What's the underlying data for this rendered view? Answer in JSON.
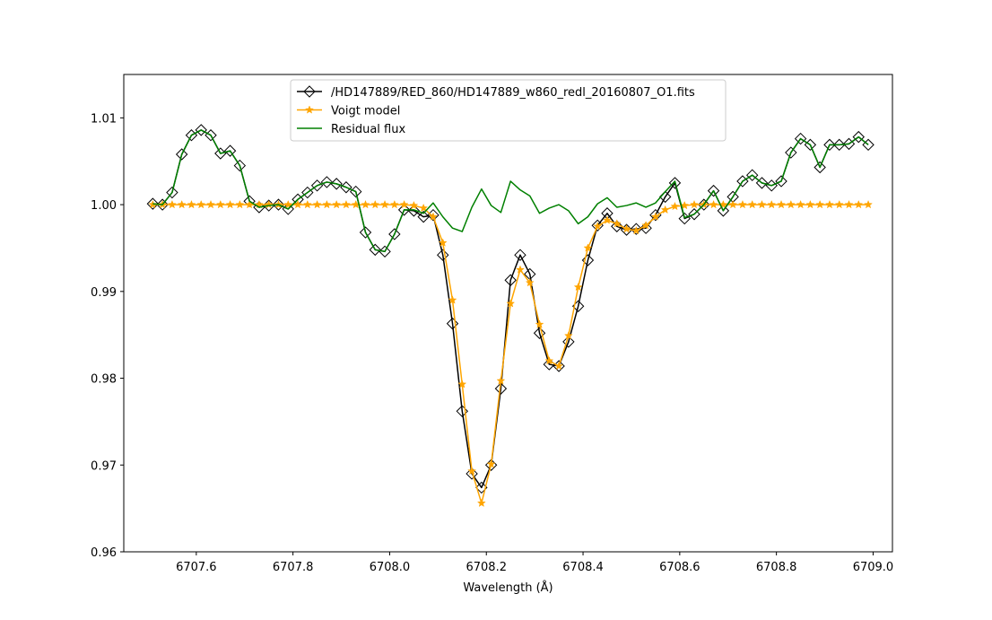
{
  "chart_data": {
    "type": "line",
    "title": "",
    "xlabel": "Wavelength (Å)",
    "ylabel": "",
    "xlim": [
      6707.45,
      6709.04
    ],
    "ylim": [
      0.96,
      1.015
    ],
    "x_ticks": [
      {
        "value": 6707.6,
        "label": "6707.6"
      },
      {
        "value": 6707.8,
        "label": "6707.8"
      },
      {
        "value": 6708.0,
        "label": "6708.0"
      },
      {
        "value": 6708.2,
        "label": "6708.2"
      },
      {
        "value": 6708.4,
        "label": "6708.4"
      },
      {
        "value": 6708.6,
        "label": "6708.6"
      },
      {
        "value": 6708.8,
        "label": "6708.8"
      },
      {
        "value": 6709.0,
        "label": "6709.0"
      }
    ],
    "y_ticks": [
      {
        "value": 0.96,
        "label": "0.96"
      },
      {
        "value": 0.97,
        "label": "0.97"
      },
      {
        "value": 0.98,
        "label": "0.98"
      },
      {
        "value": 0.99,
        "label": "0.99"
      },
      {
        "value": 1.0,
        "label": "1.00"
      },
      {
        "value": 1.01,
        "label": "1.01"
      }
    ],
    "grid": false,
    "legend_position": "top-center",
    "x": [
      6707.51,
      6707.53,
      6707.55,
      6707.57,
      6707.59,
      6707.61,
      6707.63,
      6707.65,
      6707.67,
      6707.69,
      6707.71,
      6707.73,
      6707.75,
      6707.77,
      6707.79,
      6707.81,
      6707.83,
      6707.85,
      6707.87,
      6707.89,
      6707.91,
      6707.93,
      6707.95,
      6707.97,
      6707.99,
      6708.01,
      6708.03,
      6708.05,
      6708.07,
      6708.09,
      6708.11,
      6708.13,
      6708.15,
      6708.17,
      6708.19,
      6708.21,
      6708.23,
      6708.25,
      6708.27,
      6708.29,
      6708.31,
      6708.33,
      6708.35,
      6708.37,
      6708.39,
      6708.41,
      6708.43,
      6708.45,
      6708.47,
      6708.49,
      6708.51,
      6708.53,
      6708.55,
      6708.57,
      6708.59,
      6708.61,
      6708.63,
      6708.65,
      6708.67,
      6708.69,
      6708.71,
      6708.73,
      6708.75,
      6708.77,
      6708.79,
      6708.81,
      6708.83,
      6708.85,
      6708.87,
      6708.89,
      6708.91,
      6708.93,
      6708.95,
      6708.97,
      6708.99
    ],
    "series": [
      {
        "name": "/HD147889/RED_860/HD147889_w860_redl_20160807_O1.fits",
        "color": "#000000",
        "marker": "diamond-open",
        "values": [
          1.0001,
          1.0,
          1.0014,
          1.0058,
          1.008,
          1.0086,
          1.008,
          1.0059,
          1.0062,
          1.0045,
          1.0004,
          0.9997,
          0.9999,
          1.0,
          0.9995,
          1.0006,
          1.0014,
          1.0022,
          1.0026,
          1.0024,
          1.002,
          1.0015,
          0.9968,
          0.9948,
          0.9946,
          0.9966,
          0.9994,
          0.9993,
          0.9986,
          0.9988,
          0.9942,
          0.9863,
          0.9762,
          0.969,
          0.9674,
          0.97,
          0.9788,
          0.9913,
          0.9942,
          0.992,
          0.9852,
          0.9816,
          0.9814,
          0.9842,
          0.9883,
          0.9936,
          0.9976,
          0.999,
          0.9975,
          0.9971,
          0.9972,
          0.9973,
          0.9988,
          1.0009,
          1.0025,
          0.9984,
          0.9989,
          1.0,
          1.0016,
          0.9993,
          1.0009,
          1.0027,
          1.0034,
          1.0025,
          1.0022,
          1.0027,
          1.006,
          1.0076,
          1.0069,
          1.0043,
          1.0069,
          1.0069,
          1.007,
          1.0078,
          1.0069
        ]
      },
      {
        "name": "Voigt model",
        "color": "#ffa500",
        "marker": "star",
        "values": [
          1.0,
          1.0,
          1.0,
          1.0,
          1.0,
          1.0,
          1.0,
          1.0,
          1.0,
          1.0,
          1.0,
          1.0,
          1.0,
          1.0,
          1.0,
          1.0,
          1.0,
          1.0,
          1.0,
          1.0,
          1.0,
          1.0,
          1.0,
          1.0,
          1.0,
          1.0,
          1.0,
          0.9999,
          0.9996,
          0.9986,
          0.9956,
          0.989,
          0.9793,
          0.9693,
          0.9656,
          0.9701,
          0.9797,
          0.9886,
          0.9925,
          0.991,
          0.9862,
          0.982,
          0.9814,
          0.9849,
          0.9905,
          0.995,
          0.9975,
          0.9982,
          0.9978,
          0.9972,
          0.997,
          0.9976,
          0.9986,
          0.9994,
          0.9998,
          0.9999,
          1.0,
          1.0,
          1.0,
          1.0,
          1.0,
          1.0,
          1.0,
          1.0,
          1.0,
          1.0,
          1.0,
          1.0,
          1.0,
          1.0,
          1.0,
          1.0,
          1.0,
          1.0,
          1.0
        ]
      },
      {
        "name": "Residual flux",
        "color": "#008000",
        "marker": "none",
        "values": [
          1.0001,
          1.0,
          1.0014,
          1.0058,
          1.008,
          1.0086,
          1.008,
          1.0059,
          1.0062,
          1.0045,
          1.0004,
          0.9997,
          0.9999,
          1.0,
          0.9995,
          1.0006,
          1.0014,
          1.0022,
          1.0026,
          1.0024,
          1.002,
          1.0015,
          0.9968,
          0.9948,
          0.9946,
          0.9966,
          0.9994,
          0.9994,
          0.999,
          1.0002,
          0.9986,
          0.9973,
          0.9969,
          0.9997,
          1.0018,
          0.9999,
          0.9991,
          1.0027,
          1.0017,
          1.001,
          0.999,
          0.9996,
          1.0,
          0.9993,
          0.9978,
          0.9986,
          1.0001,
          1.0008,
          0.9997,
          0.9999,
          1.0002,
          0.9997,
          1.0002,
          1.0015,
          1.0027,
          0.9985,
          0.9989,
          1.0,
          1.0016,
          0.9993,
          1.0009,
          1.0027,
          1.0034,
          1.0025,
          1.0022,
          1.0027,
          1.006,
          1.0076,
          1.0069,
          1.0043,
          1.0069,
          1.0069,
          1.007,
          1.0078,
          1.0069
        ]
      }
    ]
  }
}
